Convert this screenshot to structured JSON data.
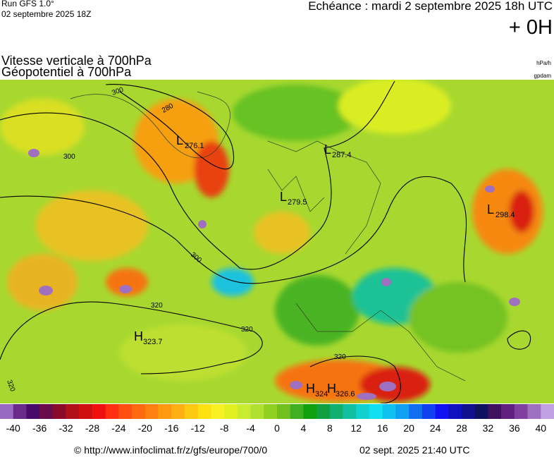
{
  "header": {
    "run": "Run GFS 1.0°",
    "run_date": "02 septembre 2025 18Z",
    "valid": "Echéance : mardi 2 septembre 2025 18h UTC",
    "offset": "+ 0H"
  },
  "titles": [
    "Vitesse verticale à 700hPa",
    "Géopotentiel à 700hPa"
  ],
  "units": [
    "hPa/h",
    "gpdam"
  ],
  "contour_labels": [
    "300",
    "280",
    "300",
    "300",
    "320",
    "320",
    "320",
    "320"
  ],
  "centers": [
    {
      "kind": "L",
      "value": "276.1"
    },
    {
      "kind": "L",
      "value": "287.4"
    },
    {
      "kind": "L",
      "value": "279.5"
    },
    {
      "kind": "L",
      "value": "298.4"
    },
    {
      "kind": "H",
      "value": "323.7"
    },
    {
      "kind": "H",
      "value": "324"
    },
    {
      "kind": "H",
      "value": "326.6"
    }
  ],
  "legend": {
    "ticks": [
      -40,
      -36,
      -32,
      -28,
      -24,
      -20,
      -16,
      -12,
      -8,
      -4,
      0,
      4,
      8,
      12,
      16,
      20,
      24,
      28,
      32,
      36,
      40
    ],
    "colors": [
      "#9a6ac0",
      "#6a2a8a",
      "#4a0a6a",
      "#6a0a4a",
      "#8a0a2a",
      "#b0101a",
      "#d01010",
      "#f01010",
      "#ff3010",
      "#ff5010",
      "#ff6a10",
      "#ff8010",
      "#ff9a10",
      "#ffb010",
      "#ffc810",
      "#ffe010",
      "#f8f020",
      "#e0f020",
      "#c8ec30",
      "#b0e030",
      "#90d020",
      "#70c020",
      "#40b020",
      "#10a010",
      "#10a040",
      "#10b070",
      "#10c0a0",
      "#10d0d0",
      "#10e0f0",
      "#10c0f0",
      "#10a0f0",
      "#1070f0",
      "#1040f0",
      "#1010f0",
      "#1010c0",
      "#101090",
      "#101060",
      "#401060",
      "#602080",
      "#8040a0",
      "#a070c0",
      "#c0a0e0"
    ]
  },
  "footer": {
    "url": "© http://www.infoclimat.fr/z/gfs/europe/700/0",
    "timestamp": "02 sept. 2025 21:40 UTC"
  }
}
